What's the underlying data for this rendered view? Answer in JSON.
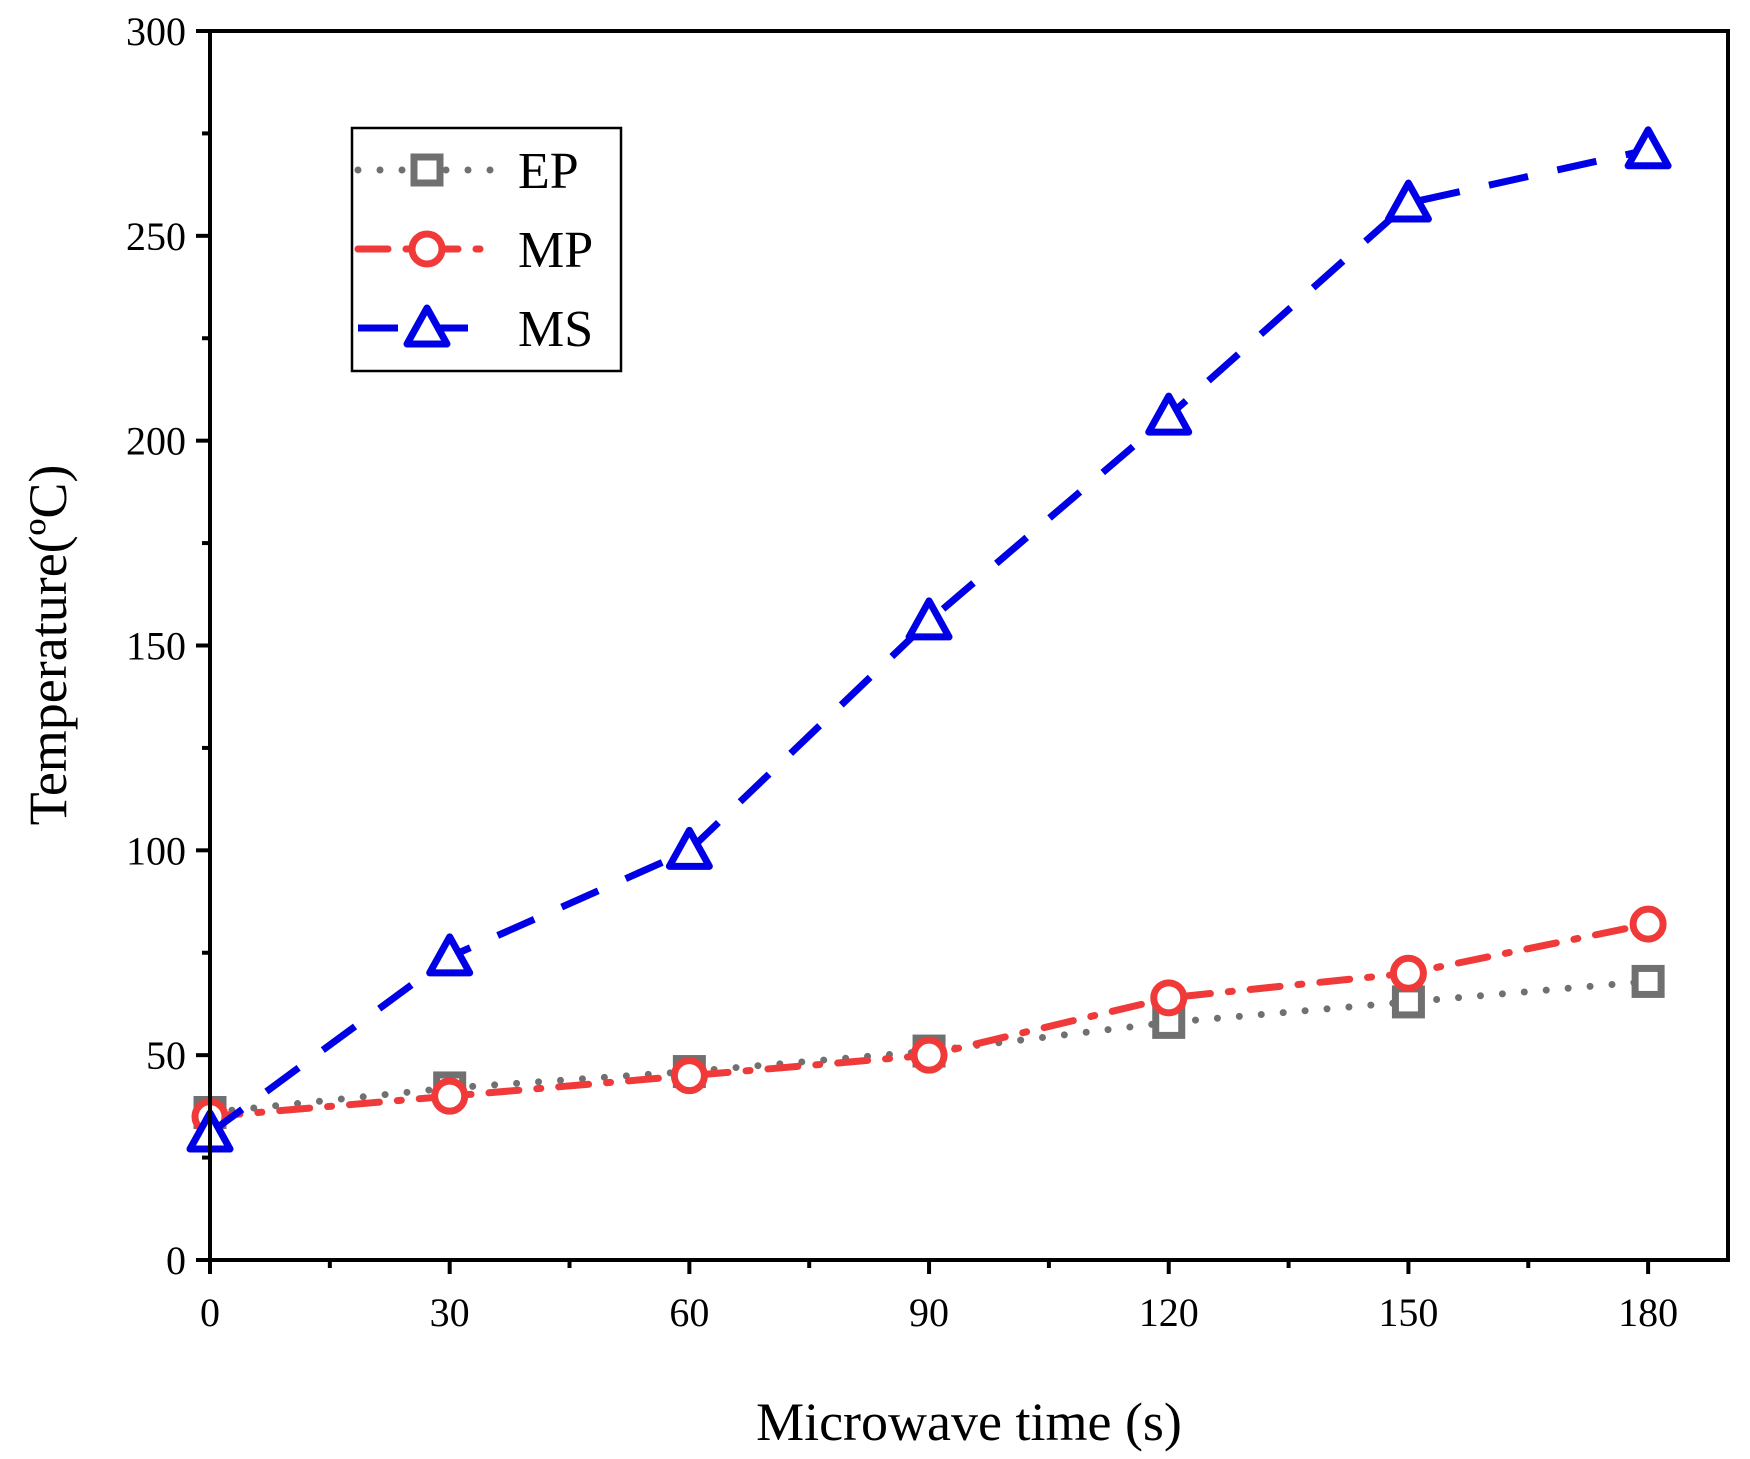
{
  "chart_data": {
    "type": "line",
    "title": "",
    "xlabel": "Microwave time (s)",
    "ylabel": "Temperature(ºC)",
    "xlim": [
      0,
      190
    ],
    "ylim": [
      0,
      300
    ],
    "xticks": [
      0,
      30,
      60,
      90,
      120,
      150,
      180
    ],
    "yticks": [
      0,
      50,
      100,
      150,
      200,
      250,
      300
    ],
    "x": [
      0,
      30,
      60,
      90,
      120,
      150,
      180
    ],
    "grid": false,
    "legend_position": "top-left",
    "series": [
      {
        "name": "EP",
        "values": [
          36,
          42,
          46,
          51,
          58,
          63,
          68
        ],
        "color": "#707070",
        "marker": "square",
        "line_style": "dotted"
      },
      {
        "name": "MP",
        "values": [
          35,
          40,
          45,
          50,
          64,
          70,
          82
        ],
        "color": "#f03a3a",
        "marker": "circle",
        "line_style": "dash-dot"
      },
      {
        "name": "MS",
        "values": [
          31,
          74,
          100,
          156,
          206,
          258,
          271
        ],
        "color": "#0000e6",
        "marker": "triangle",
        "line_style": "dashed"
      }
    ]
  }
}
